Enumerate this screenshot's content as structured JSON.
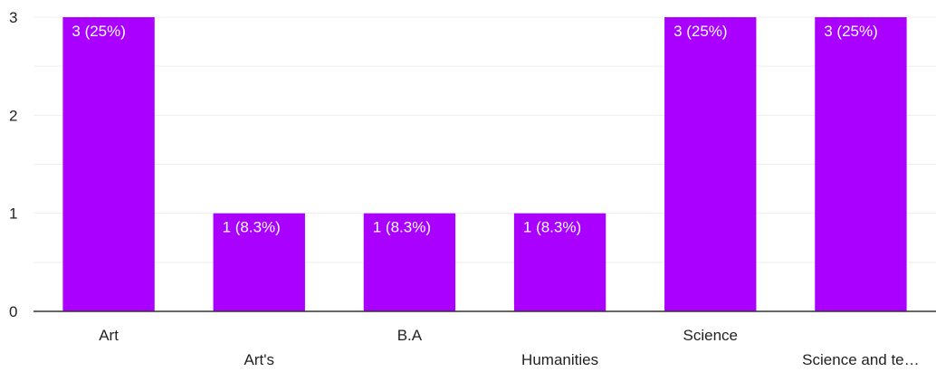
{
  "chart_data": {
    "type": "bar",
    "categories": [
      "Art",
      "Art's",
      "B.A",
      "Humanities",
      "Science",
      "Science and te…"
    ],
    "values": [
      3,
      1,
      1,
      1,
      3,
      3
    ],
    "data_labels": [
      "3 (25%)",
      "1 (8.3%)",
      "1 (8.3%)",
      "1 (8.3%)",
      "3 (25%)",
      "3 (25%)"
    ],
    "y_ticks": [
      "0",
      "1",
      "2",
      "3"
    ],
    "ylim": [
      0,
      3
    ],
    "grid": true,
    "title": "",
    "xlabel": "",
    "ylabel": ""
  },
  "colors": {
    "bar": "#aa00ff",
    "grid": "#eeeeee",
    "axis": "#333333",
    "text": "#222222"
  }
}
